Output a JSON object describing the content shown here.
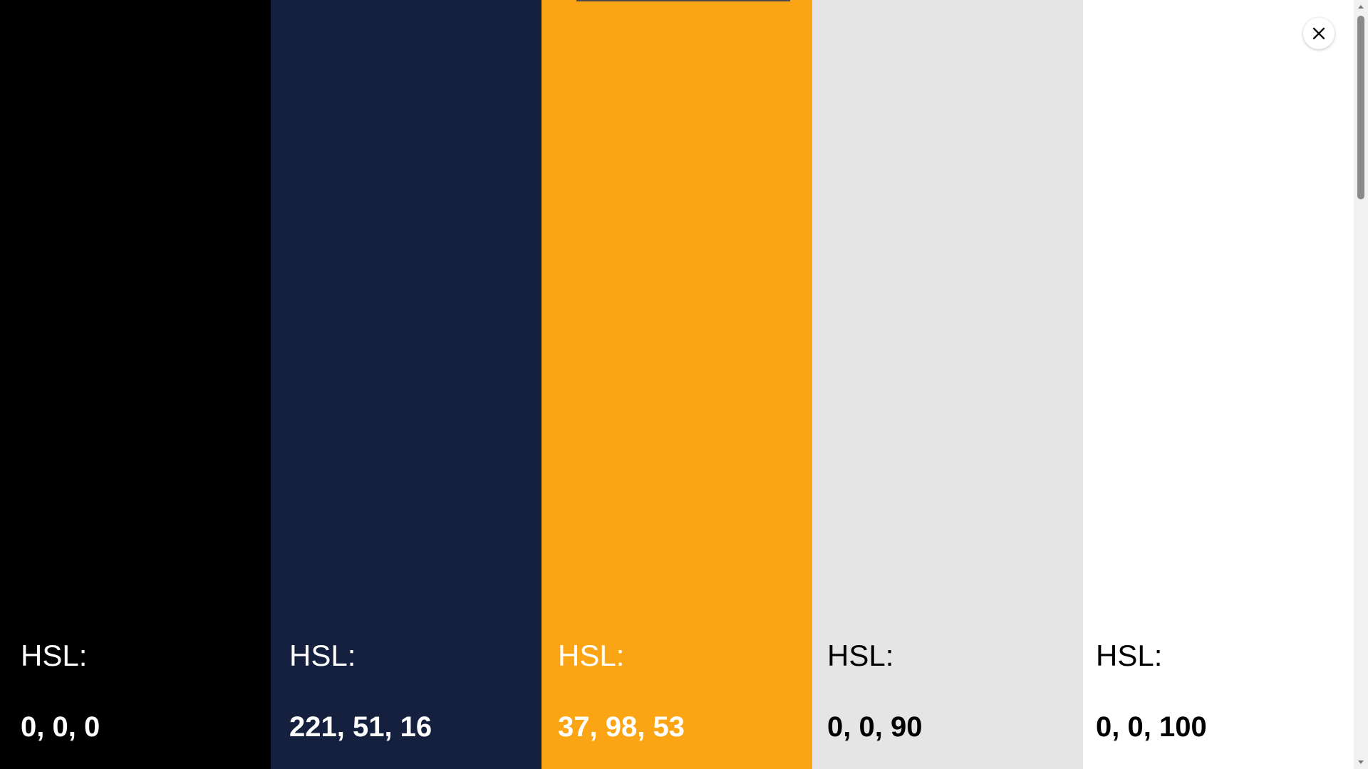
{
  "swatches": [
    {
      "label": "HSL:",
      "value": "0, 0, 0",
      "color": "#000000",
      "text_color": "#ffffff"
    },
    {
      "label": "HSL:",
      "value": "221, 51, 16",
      "color": "#14203e",
      "text_color": "#ffffff"
    },
    {
      "label": "HSL:",
      "value": "37, 98, 53",
      "color": "#fba414",
      "text_color": "#ffffff"
    },
    {
      "label": "HSL:",
      "value": "0, 0, 90",
      "color": "#e5e5e5",
      "text_color": "#000000"
    },
    {
      "label": "HSL:",
      "value": "0, 0, 100",
      "color": "#ffffff",
      "text_color": "#000000"
    }
  ],
  "close_button": {
    "icon": "close-icon"
  },
  "scrollbar": {
    "up_icon": "chevron-up-icon",
    "down_icon": "chevron-down-icon"
  }
}
